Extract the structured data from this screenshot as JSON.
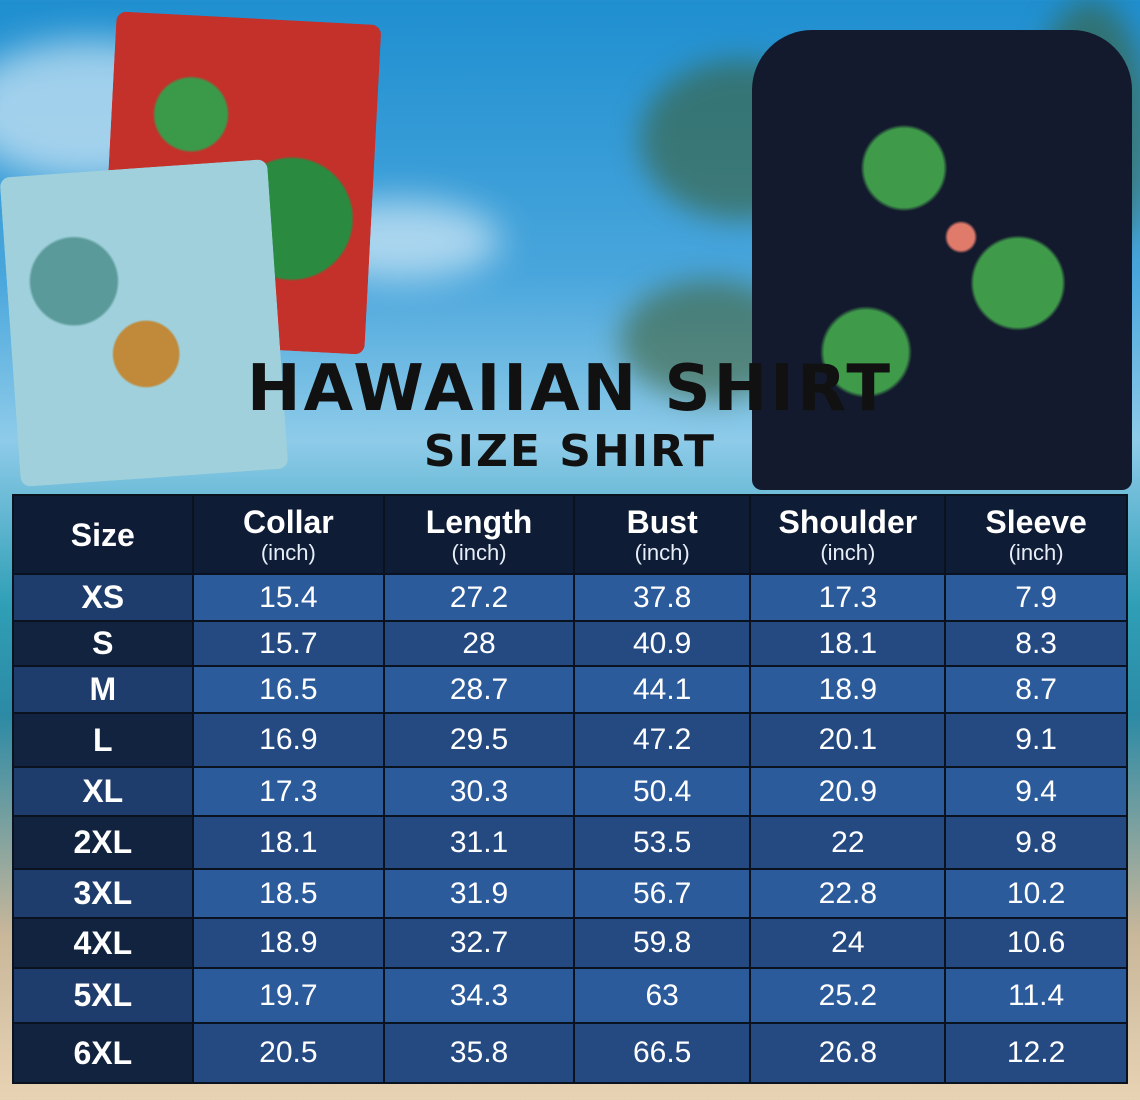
{
  "title": "HAWAIIAN SHIRT",
  "subtitle": "SIZE SHIRT",
  "table": {
    "headers": [
      {
        "label": "Size",
        "unit": ""
      },
      {
        "label": "Collar",
        "unit": "(inch)"
      },
      {
        "label": "Length",
        "unit": "(inch)"
      },
      {
        "label": "Bust",
        "unit": "(inch)"
      },
      {
        "label": "Shoulder",
        "unit": "(inch)"
      },
      {
        "label": "Sleeve",
        "unit": "(inch)"
      }
    ],
    "rows": [
      [
        "XS",
        "15.4",
        "27.2",
        "37.8",
        "17.3",
        "7.9"
      ],
      [
        "S",
        "15.7",
        "28",
        "40.9",
        "18.1",
        "8.3"
      ],
      [
        "M",
        "16.5",
        "28.7",
        "44.1",
        "18.9",
        "8.7"
      ],
      [
        "L",
        "16.9",
        "29.5",
        "47.2",
        "20.1",
        "9.1"
      ],
      [
        "XL",
        "17.3",
        "30.3",
        "50.4",
        "20.9",
        "9.4"
      ],
      [
        "2XL",
        "18.1",
        "31.1",
        "53.5",
        "22",
        "9.8"
      ],
      [
        "3XL",
        "18.5",
        "31.9",
        "56.7",
        "22.8",
        "10.2"
      ],
      [
        "4XL",
        "18.9",
        "32.7",
        "59.8",
        "24",
        "10.6"
      ],
      [
        "5XL",
        "19.7",
        "34.3",
        "63",
        "25.2",
        "11.4"
      ],
      [
        "6XL",
        "20.5",
        "35.8",
        "66.5",
        "26.8",
        "12.2"
      ]
    ]
  },
  "colors": {
    "header_bg": "#0e1c36",
    "row_light": "#2c5b9c",
    "row_dark": "#254a82"
  }
}
